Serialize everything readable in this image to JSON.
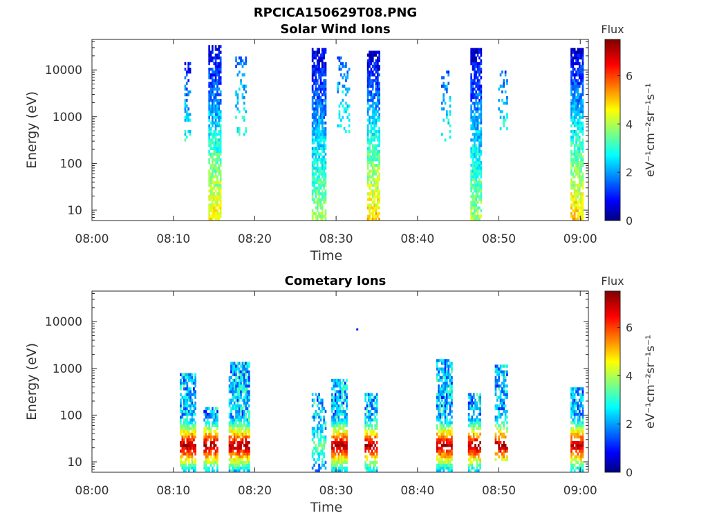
{
  "figure_title": "RPCICA150629T08.PNG",
  "colors": {
    "colormap": [
      "#00007f",
      "#0000ff",
      "#007fff",
      "#00ffff",
      "#7fff7f",
      "#ffff00",
      "#ff7f00",
      "#ff0000",
      "#7f0000"
    ]
  },
  "chart_data": [
    {
      "type": "heatmap",
      "title": "Solar Wind Ions",
      "xlabel": "Time",
      "ylabel": "Energy (eV)",
      "x_ticks": [
        "08:00",
        "08:10",
        "08:20",
        "08:30",
        "08:40",
        "08:50",
        "09:00"
      ],
      "x_range_minutes": [
        0,
        61
      ],
      "y_scale": "log",
      "y_ticks": [
        10,
        100,
        1000,
        10000
      ],
      "y_tick_labels": [
        "10",
        "100",
        "1000",
        "10000"
      ],
      "y_range": [
        6,
        45000
      ],
      "colorbar": {
        "title": "Flux",
        "label": "eV⁻¹cm⁻²sr⁻¹s⁻¹",
        "ticks": [
          "0",
          "2",
          "4",
          "6"
        ],
        "range": [
          0,
          7.5
        ]
      },
      "bursts": [
        {
          "minute": 11.7,
          "width": 0.7,
          "emin": 300,
          "emax": 15000,
          "fmin": 0.8,
          "fmax": 3.0,
          "density": 0.35
        },
        {
          "minute": 15.0,
          "width": 1.4,
          "emin": 6,
          "emax": 35000,
          "fmin": 0.5,
          "fmax": 4.8,
          "density": 0.75
        },
        {
          "minute": 18.2,
          "width": 1.2,
          "emin": 400,
          "emax": 20000,
          "fmin": 1.5,
          "fmax": 3.0,
          "density": 0.3
        },
        {
          "minute": 27.8,
          "width": 1.6,
          "emin": 6,
          "emax": 30000,
          "fmin": 0.5,
          "fmax": 4.0,
          "density": 0.8
        },
        {
          "minute": 30.8,
          "width": 1.4,
          "emin": 400,
          "emax": 20000,
          "fmin": 1.5,
          "fmax": 3.0,
          "density": 0.3
        },
        {
          "minute": 34.6,
          "width": 1.6,
          "emin": 6,
          "emax": 25000,
          "fmin": 0.5,
          "fmax": 5.0,
          "density": 0.8
        },
        {
          "minute": 43.5,
          "width": 1.2,
          "emin": 300,
          "emax": 10000,
          "fmin": 1.5,
          "fmax": 3.0,
          "density": 0.3
        },
        {
          "minute": 47.2,
          "width": 1.4,
          "emin": 6,
          "emax": 30000,
          "fmin": 0.5,
          "fmax": 4.0,
          "density": 0.8
        },
        {
          "minute": 50.5,
          "width": 1.2,
          "emin": 500,
          "emax": 10000,
          "fmin": 1.5,
          "fmax": 3.0,
          "density": 0.3
        },
        {
          "minute": 59.6,
          "width": 1.6,
          "emin": 6,
          "emax": 30000,
          "fmin": 0.5,
          "fmax": 5.0,
          "density": 0.8
        }
      ]
    },
    {
      "type": "heatmap",
      "title": "Cometary Ions",
      "xlabel": "Time",
      "ylabel": "Energy (eV)",
      "x_ticks": [
        "08:00",
        "08:10",
        "08:20",
        "08:30",
        "08:40",
        "08:50",
        "09:00"
      ],
      "x_range_minutes": [
        0,
        61
      ],
      "y_scale": "log",
      "y_ticks": [
        10,
        100,
        1000,
        10000
      ],
      "y_tick_labels": [
        "10",
        "100",
        "1000",
        "10000"
      ],
      "y_range": [
        6,
        45000
      ],
      "colorbar": {
        "title": "Flux",
        "label": "eV⁻¹cm⁻²sr⁻¹s⁻¹",
        "ticks": [
          "0",
          "2",
          "4",
          "6"
        ],
        "range": [
          0,
          7.5
        ]
      },
      "bursts": [
        {
          "minute": 11.7,
          "width": 1.8,
          "emin": 6,
          "emax": 800,
          "hot": true,
          "density": 0.8
        },
        {
          "minute": 14.5,
          "width": 1.6,
          "emin": 6,
          "emax": 150,
          "hot": true,
          "density": 0.7
        },
        {
          "minute": 18.0,
          "width": 2.4,
          "emin": 6,
          "emax": 1300,
          "hot": true,
          "density": 0.8
        },
        {
          "minute": 27.8,
          "width": 1.6,
          "emin": 6,
          "emax": 300,
          "hot": false,
          "density": 0.5
        },
        {
          "minute": 30.3,
          "width": 1.8,
          "emin": 6,
          "emax": 600,
          "hot": true,
          "density": 0.8
        },
        {
          "minute": 34.3,
          "width": 1.6,
          "emin": 6,
          "emax": 300,
          "hot": true,
          "density": 0.7
        },
        {
          "minute": 43.3,
          "width": 2.0,
          "emin": 6,
          "emax": 1500,
          "hot": true,
          "density": 0.8
        },
        {
          "minute": 47.0,
          "width": 1.6,
          "emin": 6,
          "emax": 300,
          "hot": true,
          "density": 0.7
        },
        {
          "minute": 50.3,
          "width": 1.6,
          "emin": 10,
          "emax": 1200,
          "hot": true,
          "density": 0.6
        },
        {
          "minute": 59.6,
          "width": 1.6,
          "emin": 6,
          "emax": 400,
          "hot": true,
          "density": 0.8
        }
      ],
      "isolated_points": [
        {
          "minute": 32.6,
          "energy": 6800,
          "flux": 1.0
        }
      ]
    }
  ]
}
